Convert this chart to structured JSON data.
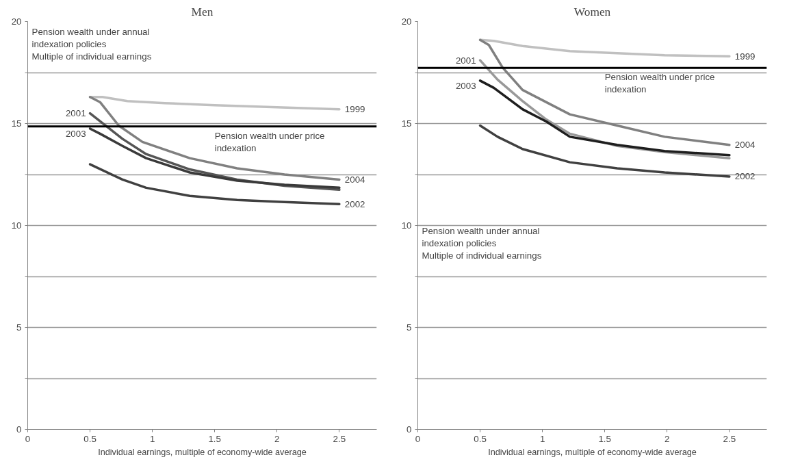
{
  "chart_data": [
    {
      "type": "line",
      "title": "Men",
      "xlabel": "Individual earnings, multiple of economy-wide average",
      "xlim": [
        0,
        2.8
      ],
      "xticks": [
        0,
        0.5,
        1,
        1.5,
        2,
        2.5
      ],
      "ylim": [
        0,
        20
      ],
      "yticks": [
        0,
        {
          "value": 2.5,
          "label": null
        },
        5,
        {
          "value": 7.5,
          "label": null
        },
        10,
        {
          "value": 12.5,
          "label": null
        },
        15,
        {
          "value": 17.5,
          "label": null
        },
        20
      ],
      "grid": "y",
      "line_style": "solid",
      "marker": "none",
      "annotations": [
        "Pension wealth under annual indexation policies",
        "Multiple of individual earnings"
      ],
      "ref_lines": [
        {
          "axis": "y",
          "value": 14.86,
          "label": "Pension wealth under price indexation",
          "color": "#000000"
        }
      ],
      "series": [
        {
          "name": "1999",
          "color": "#c0c0c0",
          "x": [
            0.5,
            0.6,
            0.8,
            1.1,
            1.5,
            2.0,
            2.5
          ],
          "values": [
            16.3,
            16.3,
            16.1,
            16.0,
            15.9,
            15.8,
            15.7
          ]
        },
        {
          "name": "2001",
          "color": "#555555",
          "x": [
            0.5,
            0.76,
            0.95,
            1.3,
            1.68,
            2.06,
            2.5
          ],
          "values": [
            15.5,
            14.25,
            13.5,
            12.75,
            12.25,
            11.95,
            11.75
          ]
        },
        {
          "name": "2002",
          "color": "#404040",
          "x": [
            0.5,
            0.76,
            0.95,
            1.3,
            1.68,
            2.06,
            2.5
          ],
          "values": [
            13.0,
            12.25,
            11.85,
            11.45,
            11.25,
            11.15,
            11.05
          ]
        },
        {
          "name": "2003",
          "color": "#3a3a3a",
          "x": [
            0.5,
            0.58,
            0.76,
            0.95,
            1.3,
            1.68,
            2.06,
            2.5
          ],
          "values": [
            14.75,
            14.5,
            13.9,
            13.3,
            12.6,
            12.2,
            12.0,
            11.85
          ]
        },
        {
          "name": "2004",
          "color": "#808080",
          "x": [
            0.5,
            0.58,
            0.73,
            0.92,
            1.3,
            1.68,
            2.06,
            2.5
          ],
          "values": [
            16.3,
            16.05,
            14.9,
            14.1,
            13.3,
            12.8,
            12.5,
            12.25
          ]
        }
      ]
    },
    {
      "type": "line",
      "title": "Women",
      "xlabel": "Individual earnings, multiple of economy-wide average",
      "xlim": [
        0,
        2.8
      ],
      "xticks": [
        0,
        0.5,
        1,
        1.5,
        2,
        2.5
      ],
      "ylim": [
        0,
        20
      ],
      "yticks": [
        0,
        {
          "value": 2.5,
          "label": null
        },
        5,
        {
          "value": 7.5,
          "label": null
        },
        10,
        {
          "value": 12.5,
          "label": null
        },
        15,
        {
          "value": 17.5,
          "label": null
        },
        20
      ],
      "grid": "y",
      "line_style": "solid",
      "marker": "none",
      "annotations": [
        "Pension wealth under annual indexation policies",
        "Multiple of individual earnings"
      ],
      "ref_lines": [
        {
          "axis": "y",
          "value": 17.73,
          "label": "Pension wealth under price indexation",
          "color": "#000000"
        }
      ],
      "series": [
        {
          "name": "1999",
          "color": "#c0c0c0",
          "x": [
            0.5,
            0.61,
            0.84,
            1.22,
            1.6,
            1.98,
            2.5
          ],
          "values": [
            19.1,
            19.05,
            18.8,
            18.55,
            18.45,
            18.35,
            18.3
          ]
        },
        {
          "name": "2001",
          "color": "#999999",
          "x": [
            0.5,
            0.64,
            0.84,
            1.03,
            1.22,
            1.6,
            1.98,
            2.5
          ],
          "values": [
            18.1,
            17.15,
            16.1,
            15.2,
            14.5,
            13.9,
            13.6,
            13.3
          ]
        },
        {
          "name": "2002",
          "color": "#404040",
          "x": [
            0.5,
            0.64,
            0.84,
            1.22,
            1.6,
            1.98,
            2.5
          ],
          "values": [
            14.9,
            14.35,
            13.75,
            13.1,
            12.8,
            12.6,
            12.4
          ]
        },
        {
          "name": "2003",
          "color": "#1e1e1e",
          "x": [
            0.5,
            0.61,
            0.84,
            1.03,
            1.22,
            1.6,
            1.98,
            2.5
          ],
          "values": [
            17.1,
            16.75,
            15.7,
            15.1,
            14.35,
            13.95,
            13.65,
            13.45
          ]
        },
        {
          "name": "2004",
          "color": "#808080",
          "x": [
            0.5,
            0.57,
            0.68,
            0.84,
            1.22,
            1.6,
            1.98,
            2.5
          ],
          "values": [
            19.1,
            18.85,
            17.75,
            16.65,
            15.45,
            14.9,
            14.35,
            13.95
          ]
        }
      ]
    }
  ]
}
